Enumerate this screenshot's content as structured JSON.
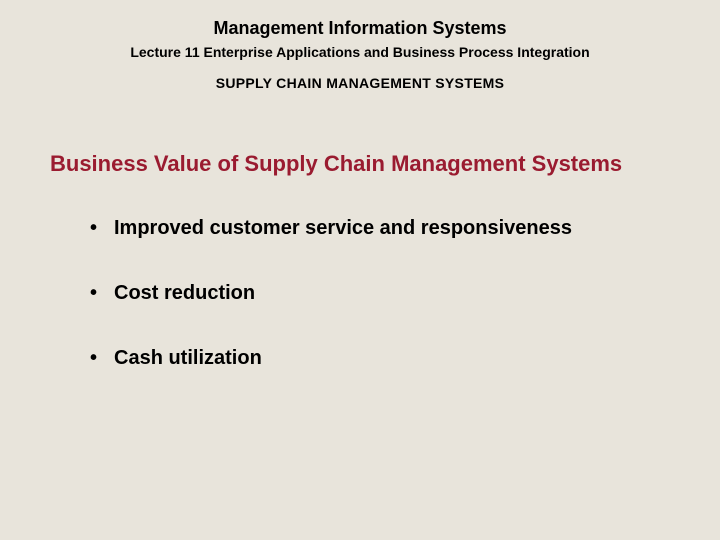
{
  "header": {
    "title": "Management Information Systems",
    "subtitle": "Lecture 11 Enterprise Applications and Business Process Integration",
    "section": "SUPPLY CHAIN MANAGEMENT SYSTEMS"
  },
  "content": {
    "title": "Business Value of Supply Chain Management Systems",
    "title_color": "#9a1b30",
    "bullets": [
      "Improved customer service and responsiveness",
      "Cost reduction",
      "Cash utilization"
    ]
  },
  "style": {
    "background_color": "#e8e4db",
    "text_color": "#000000",
    "header_title_fontsize": 18,
    "header_subtitle_fontsize": 14,
    "section_fontsize": 14,
    "content_title_fontsize": 22,
    "bullet_fontsize": 20,
    "font_family": "Arial"
  }
}
